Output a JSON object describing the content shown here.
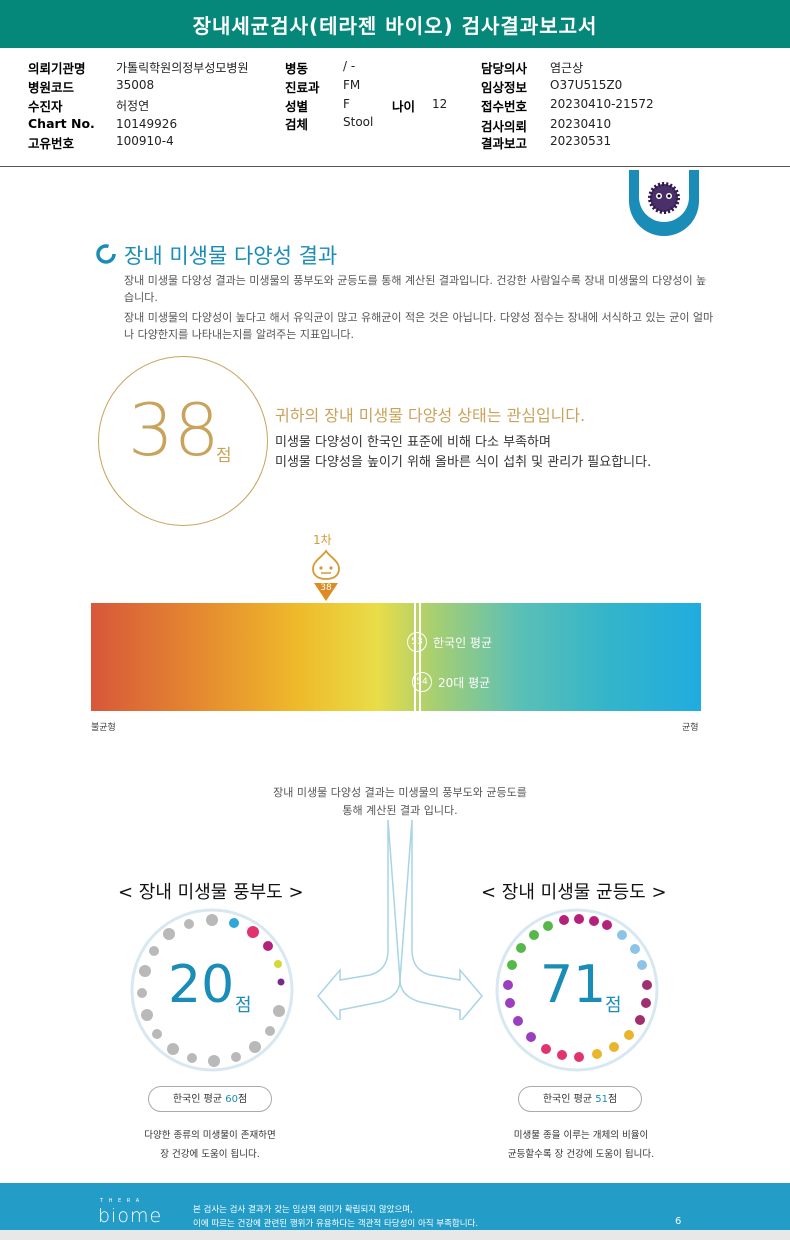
{
  "header": {
    "title": "장내세균검사(테라젠 바이오) 검사결과보고서"
  },
  "patient": {
    "institution_label": "의뢰기관명",
    "institution": "가톨릭학원의정부성모병원",
    "hospital_code_label": "병원코드",
    "hospital_code": "35008",
    "patient_label": "수진자",
    "patient": "허정연",
    "chart_label": "Chart No.",
    "chart": "10149926",
    "unique_label": "고유번호",
    "unique": "100910-4",
    "ward_label": "병동",
    "ward": "/ -",
    "dept_label": "진료과",
    "dept": "FM",
    "sex_label": "성별",
    "sex": "F",
    "age_label": "나이",
    "age": "12",
    "specimen_label": "검체",
    "specimen": "Stool",
    "doctor_label": "담당의사",
    "doctor": "염근상",
    "clinical_label": "임상정보",
    "clinical": "O37U515Z0",
    "accession_label": "접수번호",
    "accession": "20230410-21572",
    "request_label": "검사의뢰",
    "request": "20230410",
    "report_label": "결과보고",
    "report": "20230531"
  },
  "diversity": {
    "section_title": "장내 미생물 다양성 결과",
    "desc1": "장내 미생물 다양성 결과는 미생물의 풍부도와 균등도를 통해 계산된 결과입니다. 건강한 사람일수록 장내 미생물의 다양성이 높습니다.",
    "desc2": "장내 미생물의 다양성이 높다고 해서 유익균이 많고 유해균이 적은 것은 아닙니다. 다양성 점수는 장내에 서식하고 있는 균이 얼마나 다양한지를 나타내는지를 알려주는 지표입니다.",
    "score": "38",
    "score_unit": "점",
    "headline": "귀하의 장내 미생물 다양성 상태는 관심입니다.",
    "line1": "미생물 다양성이 한국인 표준에 비해 다소 부족하며",
    "line2": "미생물 다양성을 높이기 위해 올바른 식이 섭취 및 관리가 필요합니다.",
    "round_label": "1차",
    "marker_value": "38",
    "korean_avg_value": "53",
    "korean_avg_label": "한국인 평균",
    "twenties_avg_value": "54",
    "twenties_avg_label": "20대 평균",
    "left_end": "불균형",
    "right_end": "균형"
  },
  "components": {
    "desc_line1": "장내 미생물 다양성 결과는 미생물의 풍부도와 균등도를",
    "desc_line2": "통해 계산된 결과 입니다.",
    "richness_title": "< 장내 미생물 풍부도 >",
    "richness_score": "20",
    "richness_unit": "점",
    "richness_avg_prefix": "한국인 평균 ",
    "richness_avg_value": "60",
    "richness_avg_suffix": "점",
    "richness_desc1": "다양한 종류의 미생물이 존재하면",
    "richness_desc2": "장 건강에 도움이 됩니다.",
    "evenness_title": "< 장내 미생물 균등도 >",
    "evenness_score": "71",
    "evenness_unit": "점",
    "evenness_avg_prefix": "한국인 평균 ",
    "evenness_avg_value": "51",
    "evenness_avg_suffix": "점",
    "evenness_desc1": "미생물 종을 이루는 개체의 비율이",
    "evenness_desc2": "균등할수록 장 건강에 도움이 됩니다."
  },
  "footer": {
    "brand_small": "T H E R A",
    "brand": "biome",
    "note1": "본 검사는 검사 결과가 갖는 임상적 의미가 확립되지 않았으며,",
    "note2": "이에 따르는 건강에 관련된 행위가 유용하다는 객관적 타당성이 아직 부족합니다.",
    "page": "6"
  },
  "colors": {
    "teal": "#05877a",
    "blue": "#1a8cb8",
    "gold": "#c9a35c"
  }
}
